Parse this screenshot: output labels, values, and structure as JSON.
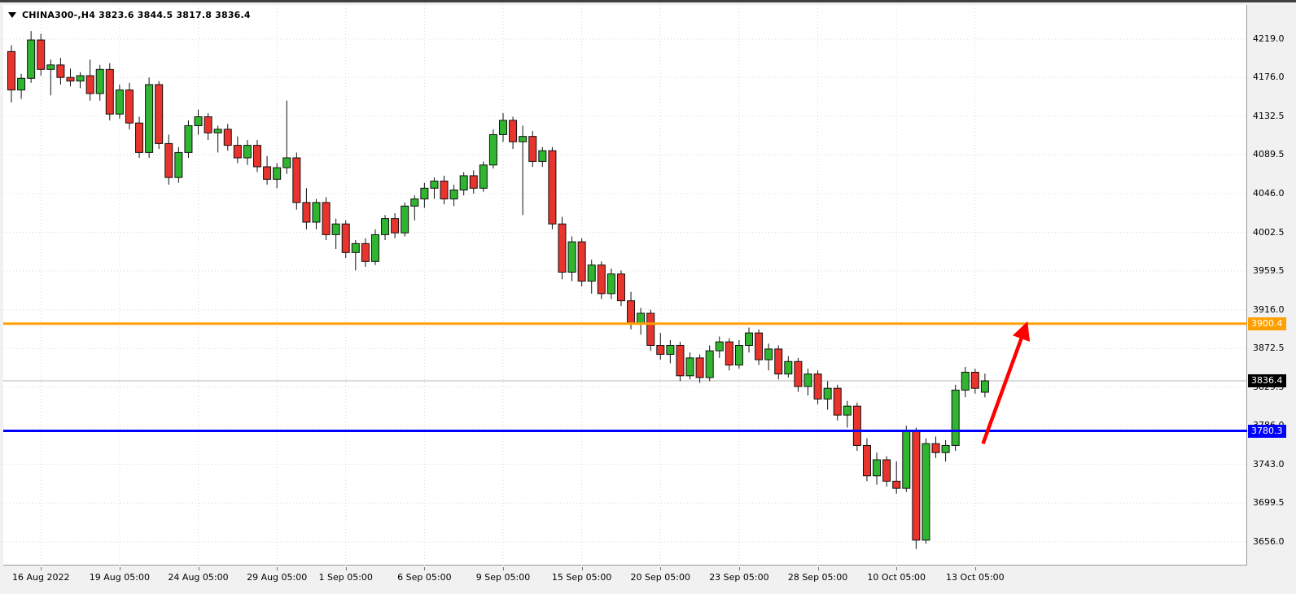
{
  "header": {
    "text": "CHINA300-,H4 3823.6 3844.5 3817.8 3836.4"
  },
  "colors": {
    "up_candle": "#2fb52f",
    "down_candle": "#e8342c",
    "candle_border": "#111111",
    "grid": "#d8d8d8",
    "current_price_line": "#b5b5b5",
    "current_price_bg": "#000000",
    "arrow": "#ff0000"
  },
  "chart_data": {
    "type": "candlestick",
    "symbol": "CHINA300-",
    "timeframe": "H4",
    "current_bar": {
      "open": 3823.6,
      "high": 3844.5,
      "low": 3817.8,
      "close": 3836.4
    },
    "current_price": {
      "value": 3836.4,
      "label": "3836.4"
    },
    "y_ticks": [
      4219.0,
      4176.0,
      4132.5,
      4089.5,
      4046.0,
      4002.5,
      3959.5,
      3916.0,
      3872.5,
      3829.5,
      3786.0,
      3743.0,
      3699.5,
      3656.0
    ],
    "y_tick_labels": [
      "4219.0",
      "4176.0",
      "4132.5",
      "4089.5",
      "4046.0",
      "4002.5",
      "3959.5",
      "3916.0",
      "3872.5",
      "3829.5",
      "3786.0",
      "3743.0",
      "3699.5",
      "3656.0"
    ],
    "x_labels": [
      "16 Aug 2022",
      "19 Aug 05:00",
      "24 Aug 05:00",
      "29 Aug 05:00",
      "1 Sep 05:00",
      "6 Sep 05:00",
      "9 Sep 05:00",
      "15 Sep 05:00",
      "20 Sep 05:00",
      "23 Sep 05:00",
      "28 Sep 05:00",
      "10 Oct 05:00",
      "13 Oct 05:00"
    ],
    "x_label_indices": [
      3,
      11,
      19,
      27,
      34,
      42,
      50,
      58,
      66,
      74,
      82,
      90,
      98
    ],
    "hlines": [
      {
        "price": 3900.4,
        "label": "3900.4",
        "color": "#ffa000"
      },
      {
        "price": 3780.3,
        "label": "3780.3",
        "color": "#0000ff"
      }
    ],
    "arrow": {
      "index_from": 98.8,
      "price_from": 3766,
      "index_to": 103.2,
      "price_to": 3899
    },
    "candles": [
      [
        4205,
        4212,
        4148,
        4162
      ],
      [
        4162,
        4180,
        4152,
        4175
      ],
      [
        4175,
        4228,
        4170,
        4218
      ],
      [
        4218,
        4225,
        4178,
        4185
      ],
      [
        4185,
        4196,
        4156,
        4190
      ],
      [
        4190,
        4198,
        4168,
        4176
      ],
      [
        4176,
        4186,
        4166,
        4172
      ],
      [
        4172,
        4182,
        4164,
        4178
      ],
      [
        4178,
        4196,
        4150,
        4158
      ],
      [
        4158,
        4190,
        4150,
        4185
      ],
      [
        4185,
        4192,
        4128,
        4135
      ],
      [
        4135,
        4168,
        4130,
        4162
      ],
      [
        4162,
        4170,
        4118,
        4125
      ],
      [
        4125,
        4132,
        4086,
        4092
      ],
      [
        4092,
        4176,
        4086,
        4168
      ],
      [
        4168,
        4172,
        4096,
        4102
      ],
      [
        4102,
        4112,
        4056,
        4064
      ],
      [
        4064,
        4098,
        4058,
        4092
      ],
      [
        4092,
        4128,
        4086,
        4122
      ],
      [
        4122,
        4140,
        4112,
        4132
      ],
      [
        4132,
        4136,
        4106,
        4114
      ],
      [
        4114,
        4122,
        4092,
        4118
      ],
      [
        4118,
        4124,
        4094,
        4100
      ],
      [
        4100,
        4110,
        4080,
        4086
      ],
      [
        4086,
        4106,
        4078,
        4100
      ],
      [
        4100,
        4106,
        4070,
        4076
      ],
      [
        4076,
        4088,
        4056,
        4062
      ],
      [
        4062,
        4080,
        4052,
        4075
      ],
      [
        4075,
        4150,
        4068,
        4086
      ],
      [
        4086,
        4092,
        4028,
        4036
      ],
      [
        4036,
        4052,
        4006,
        4014
      ],
      [
        4014,
        4040,
        4006,
        4036
      ],
      [
        4036,
        4042,
        3994,
        4000
      ],
      [
        4000,
        4018,
        3984,
        4012
      ],
      [
        4012,
        4016,
        3974,
        3980
      ],
      [
        3980,
        3994,
        3960,
        3990
      ],
      [
        3990,
        3996,
        3964,
        3970
      ],
      [
        3970,
        4006,
        3966,
        4000
      ],
      [
        4000,
        4022,
        3994,
        4018
      ],
      [
        4018,
        4024,
        3996,
        4002
      ],
      [
        4002,
        4036,
        3998,
        4032
      ],
      [
        4032,
        4044,
        4016,
        4040
      ],
      [
        4040,
        4058,
        4030,
        4052
      ],
      [
        4052,
        4064,
        4040,
        4060
      ],
      [
        4060,
        4066,
        4034,
        4040
      ],
      [
        4040,
        4056,
        4032,
        4050
      ],
      [
        4050,
        4070,
        4044,
        4066
      ],
      [
        4066,
        4072,
        4046,
        4052
      ],
      [
        4052,
        4082,
        4048,
        4078
      ],
      [
        4078,
        4118,
        4074,
        4112
      ],
      [
        4112,
        4136,
        4104,
        4128
      ],
      [
        4128,
        4132,
        4096,
        4104
      ],
      [
        4104,
        4122,
        4022,
        4110
      ],
      [
        4110,
        4116,
        4076,
        4082
      ],
      [
        4082,
        4098,
        4076,
        4094
      ],
      [
        4094,
        4098,
        4006,
        4012
      ],
      [
        4012,
        4020,
        3950,
        3958
      ],
      [
        3958,
        3998,
        3948,
        3992
      ],
      [
        3992,
        3996,
        3942,
        3948
      ],
      [
        3948,
        3972,
        3934,
        3966
      ],
      [
        3966,
        3970,
        3928,
        3934
      ],
      [
        3934,
        3962,
        3928,
        3956
      ],
      [
        3956,
        3960,
        3920,
        3926
      ],
      [
        3926,
        3936,
        3894,
        3900
      ],
      [
        3900,
        3918,
        3888,
        3912
      ],
      [
        3912,
        3916,
        3870,
        3876
      ],
      [
        3876,
        3890,
        3860,
        3866
      ],
      [
        3866,
        3882,
        3856,
        3876
      ],
      [
        3876,
        3880,
        3836,
        3842
      ],
      [
        3842,
        3868,
        3838,
        3862
      ],
      [
        3862,
        3866,
        3834,
        3840
      ],
      [
        3840,
        3876,
        3836,
        3870
      ],
      [
        3870,
        3886,
        3862,
        3880
      ],
      [
        3880,
        3884,
        3848,
        3854
      ],
      [
        3854,
        3882,
        3850,
        3876
      ],
      [
        3876,
        3896,
        3868,
        3890
      ],
      [
        3890,
        3894,
        3854,
        3860
      ],
      [
        3860,
        3878,
        3848,
        3872
      ],
      [
        3872,
        3876,
        3838,
        3844
      ],
      [
        3844,
        3864,
        3840,
        3858
      ],
      [
        3858,
        3862,
        3824,
        3830
      ],
      [
        3830,
        3850,
        3820,
        3844
      ],
      [
        3844,
        3848,
        3810,
        3816
      ],
      [
        3816,
        3836,
        3804,
        3828
      ],
      [
        3828,
        3832,
        3792,
        3798
      ],
      [
        3798,
        3814,
        3784,
        3808
      ],
      [
        3808,
        3812,
        3758,
        3764
      ],
      [
        3764,
        3772,
        3724,
        3730
      ],
      [
        3730,
        3756,
        3720,
        3748
      ],
      [
        3748,
        3752,
        3718,
        3724
      ],
      [
        3724,
        3746,
        3710,
        3716
      ],
      [
        3716,
        3786,
        3712,
        3780
      ],
      [
        3780,
        3784,
        3648,
        3658
      ],
      [
        3658,
        3772,
        3654,
        3766
      ],
      [
        3766,
        3774,
        3750,
        3756
      ],
      [
        3756,
        3770,
        3746,
        3764
      ],
      [
        3764,
        3832,
        3758,
        3826
      ],
      [
        3826,
        3852,
        3818,
        3846
      ],
      [
        3846,
        3850,
        3822,
        3828
      ],
      [
        3823.6,
        3844.5,
        3817.8,
        3836.4
      ]
    ]
  }
}
